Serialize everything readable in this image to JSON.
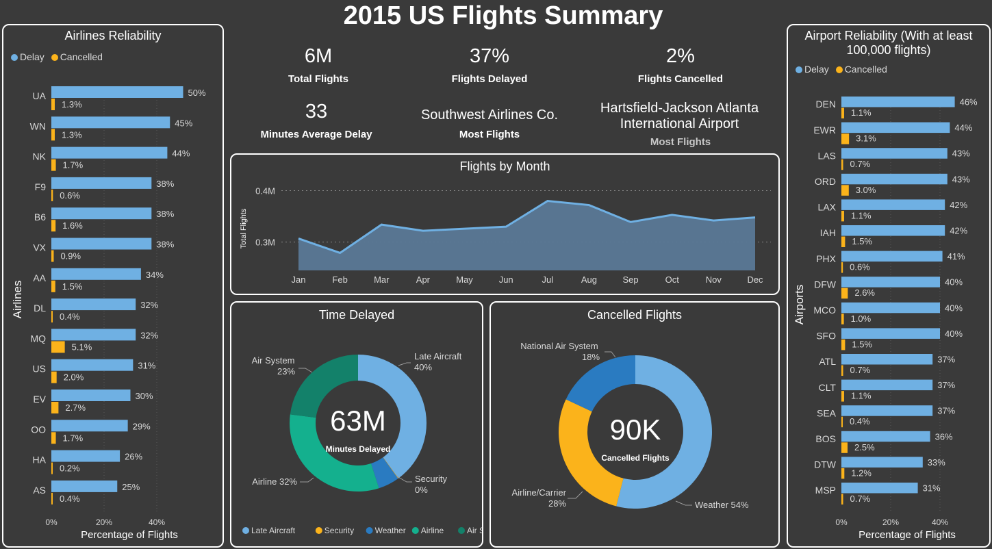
{
  "title": "2015 US Flights Summary",
  "colors": {
    "delay": "#6fb0e3",
    "cancelled": "#fbb31b",
    "background": "#3a3a3a",
    "late_aircraft": "#6fb0e3",
    "security": "#fbb31b",
    "weather": "#2a7bc1",
    "airline": "#14b08e",
    "air_system": "#13816a"
  },
  "kpis": {
    "total_flights": {
      "value": "6M",
      "label": "Total Flights"
    },
    "flights_delayed": {
      "value": "37%",
      "label": "Flights Delayed"
    },
    "flights_cancelled": {
      "value": "2%",
      "label": "Flights Cancelled"
    },
    "avg_delay": {
      "value": "33",
      "label": "Minutes Average Delay"
    },
    "most_flights_airline": {
      "value": "Southwest Airlines Co.",
      "label": "Most Flights"
    },
    "most_flights_airport": {
      "value_line1": "Hartsfield-Jackson Atlanta",
      "value_line2": "International Airport",
      "label": "Most Flights"
    }
  },
  "legend": {
    "delay": "Delay",
    "cancelled": "Cancelled"
  },
  "chart_data": [
    {
      "type": "bar",
      "title": "Airlines Reliability",
      "ylabel": "Airlines",
      "xlabel": "Percentage of Flights",
      "xticks": [
        "0%",
        "20%",
        "40%"
      ],
      "xlim": [
        0,
        50
      ],
      "categories": [
        "UA",
        "WN",
        "NK",
        "F9",
        "B6",
        "VX",
        "AA",
        "DL",
        "MQ",
        "US",
        "EV",
        "OO",
        "HA",
        "AS"
      ],
      "series": [
        {
          "name": "Delay",
          "values": [
            50,
            45,
            44,
            38,
            38,
            38,
            34,
            32,
            32,
            31,
            30,
            29,
            26,
            25
          ],
          "labels": [
            "50%",
            "45%",
            "44%",
            "38%",
            "38%",
            "38%",
            "34%",
            "32%",
            "32%",
            "31%",
            "30%",
            "29%",
            "26%",
            "25%"
          ]
        },
        {
          "name": "Cancelled",
          "values": [
            1.3,
            1.3,
            1.7,
            0.6,
            1.6,
            0.9,
            1.5,
            0.4,
            5.1,
            2.0,
            2.7,
            1.7,
            0.2,
            0.4
          ],
          "labels": [
            "1.3%",
            "1.3%",
            "1.7%",
            "0.6%",
            "1.6%",
            "0.9%",
            "1.5%",
            "0.4%",
            "5.1%",
            "2.0%",
            "2.7%",
            "1.7%",
            "0.2%",
            "0.4%"
          ]
        }
      ]
    },
    {
      "type": "bar",
      "title_line1": "Airport Reliability (With at least",
      "title_line2": "100,000 flights)",
      "ylabel": "Airports",
      "xlabel": "Percentage of Flights",
      "xticks": [
        "0%",
        "20%",
        "40%"
      ],
      "xlim": [
        0,
        50
      ],
      "categories": [
        "DEN",
        "EWR",
        "LAS",
        "ORD",
        "LAX",
        "IAH",
        "PHX",
        "DFW",
        "MCO",
        "SFO",
        "ATL",
        "CLT",
        "SEA",
        "BOS",
        "DTW",
        "MSP"
      ],
      "series": [
        {
          "name": "Delay",
          "values": [
            46,
            44,
            43,
            43,
            42,
            42,
            41,
            40,
            40,
            40,
            37,
            37,
            37,
            36,
            33,
            31
          ],
          "labels": [
            "46%",
            "44%",
            "43%",
            "43%",
            "42%",
            "42%",
            "41%",
            "40%",
            "40%",
            "40%",
            "37%",
            "37%",
            "37%",
            "36%",
            "33%",
            "31%"
          ]
        },
        {
          "name": "Cancelled",
          "values": [
            1.1,
            3.1,
            0.7,
            3.0,
            1.1,
            1.5,
            0.6,
            2.6,
            1.0,
            1.5,
            0.7,
            1.1,
            0.4,
            2.5,
            1.2,
            0.7
          ],
          "labels": [
            "1.1%",
            "3.1%",
            "0.7%",
            "3.0%",
            "1.1%",
            "1.5%",
            "0.6%",
            "2.6%",
            "1.0%",
            "1.5%",
            "0.7%",
            "1.1%",
            "0.4%",
            "2.5%",
            "1.2%",
            "0.7%"
          ]
        }
      ]
    },
    {
      "type": "area",
      "title": "Flights by Month",
      "ylabel": "Total Flights",
      "yticks": [
        "0.4M",
        "0.3M"
      ],
      "ylim": [
        0.245,
        0.41
      ],
      "categories": [
        "Jan",
        "Feb",
        "Mar",
        "Apr",
        "May",
        "Jun",
        "Jul",
        "Aug",
        "Sep",
        "Oct",
        "Nov",
        "Dec"
      ],
      "values": [
        0.307,
        0.279,
        0.334,
        0.322,
        0.326,
        0.33,
        0.38,
        0.372,
        0.339,
        0.353,
        0.342,
        0.348
      ]
    },
    {
      "type": "pie",
      "title": "Time Delayed",
      "center_value": "63M",
      "center_label": "Minutes Delayed",
      "categories": [
        "Late Aircraft",
        "Security",
        "Weather",
        "Airline",
        "Air System"
      ],
      "values": [
        40,
        0.1,
        5,
        32,
        23
      ],
      "labels": [
        {
          "name": "Late Aircraft",
          "pct": "40%"
        },
        {
          "name": "Security",
          "pct": "0%"
        },
        {
          "name": "Airline",
          "pct": "32%"
        },
        {
          "name": "Air System",
          "pct": "23%"
        }
      ],
      "legend": [
        "Late Aircraft",
        "Security",
        "Weather",
        "Airline",
        "Air System"
      ]
    },
    {
      "type": "pie",
      "title": "Cancelled Flights",
      "center_value": "90K",
      "center_label": "Cancelled Flights",
      "categories": [
        "Weather",
        "Airline/Carrier",
        "National Air System"
      ],
      "values": [
        54,
        28,
        18
      ],
      "labels": [
        {
          "name": "National Air System",
          "pct": "18%"
        },
        {
          "name": "Airline/Carrier",
          "pct": "28%"
        },
        {
          "name": "Weather",
          "pct": "54%"
        }
      ]
    }
  ]
}
